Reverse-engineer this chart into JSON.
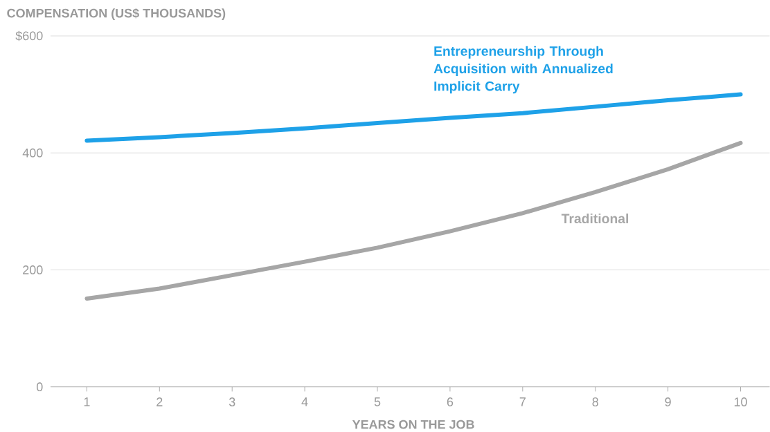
{
  "chart_data": {
    "type": "line",
    "ylabel": "COMPENSATION (US$ THOUSANDS)",
    "xlabel": "YEARS ON THE JOB",
    "x": [
      1,
      2,
      3,
      4,
      5,
      6,
      7,
      8,
      9,
      10
    ],
    "series": [
      {
        "name": "Entrepreneurship Through Acquisition with Annualized Implicit Carry",
        "color": "#1ea1e8",
        "values": [
          421,
          427,
          434,
          442,
          451,
          460,
          468,
          479,
          490,
          500
        ]
      },
      {
        "name": "Traditional",
        "color": "#a6a6a6",
        "values": [
          151,
          168,
          191,
          214,
          238,
          266,
          297,
          333,
          372,
          417
        ]
      }
    ],
    "xlim": [
      0.5,
      10.4
    ],
    "ylim": [
      0,
      600
    ],
    "xticks": [
      1,
      2,
      3,
      4,
      5,
      6,
      7,
      8,
      9,
      10
    ],
    "yticks": [
      0,
      200,
      400,
      {
        "value": 600,
        "label": "$600"
      }
    ],
    "grid": "y",
    "line_style": "solid"
  }
}
